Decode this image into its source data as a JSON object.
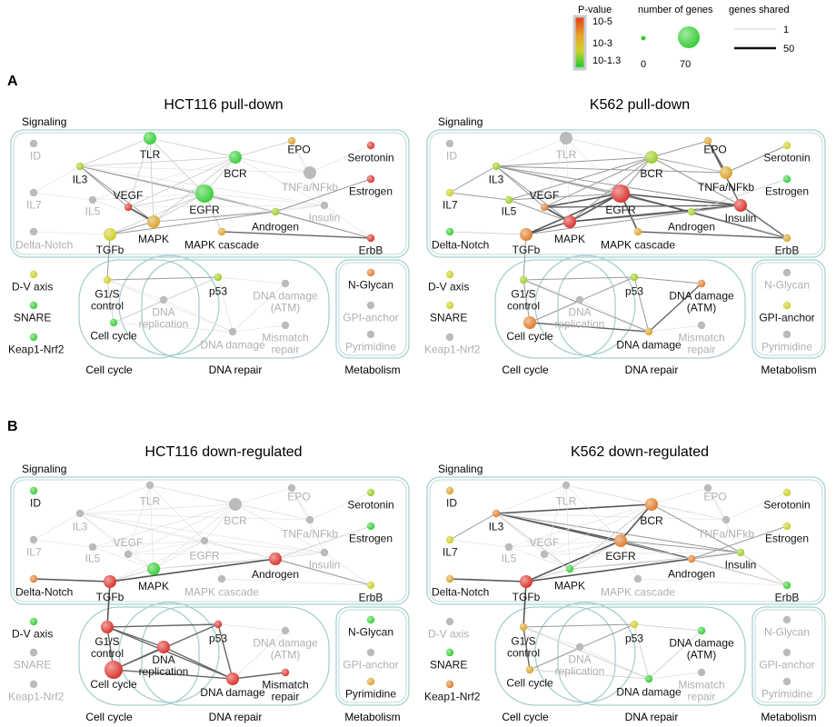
{
  "legend": {
    "pvalue_title": "P-value",
    "pvalue_ticks": [
      "10-5",
      "10-3",
      "10-1.3"
    ],
    "size_title": "number of genes",
    "size_ticks": [
      "0",
      "70"
    ],
    "shared_title": "genes shared",
    "shared_ticks": [
      "1",
      "50"
    ]
  },
  "sections": [
    "A",
    "B"
  ],
  "group_labels": {
    "signaling": "Signaling",
    "cell_cycle": "Cell cycle",
    "dna_repair": "DNA repair",
    "metabolism": "Metabolism"
  },
  "colors": {
    "inactive": "#bbbbbb",
    "strong": "#d9302a",
    "orange": "#df7a28",
    "amber": "#d9a126",
    "yellow": "#cccc22",
    "lime": "#99cc22",
    "green": "#33cc33",
    "box": "#a8cfcf"
  },
  "pathways": {
    "ID": "ID",
    "TLR": "TLR",
    "EPO": "EPO",
    "Serotonin": "Serotonin",
    "BCR": "BCR",
    "IL3": "IL3",
    "TNFa": "TNFa/NFkb",
    "VEGF": "VEGF",
    "Estrogen": "Estrogen",
    "EGFR": "EGFR",
    "IL7": "IL7",
    "IL5": "IL5",
    "Insulin": "Insulin",
    "Androgen": "Androgen",
    "MAPK": "MAPK",
    "DeltaNotch": "Delta-Notch",
    "TGFb": "TGFb",
    "MAPKcascade": "MAPK cascade",
    "ErbB": "ErbB",
    "DVaxis": "D-V axis",
    "SNARE": "SNARE",
    "Keap1": "Keap1-Nrf2",
    "G1S": "G1/S\ncontrol",
    "CellCycle": "Cell cycle",
    "DNArep": "DNA\nreplication",
    "p53": "p53",
    "DNAdamATM": "DNA damage\n(ATM)",
    "DNAdamage": "DNA damage",
    "Mismatch": "Mismatch\nrepair",
    "NGlycan": "N-Glycan",
    "GPI": "GPI-anchor",
    "Pyrimidine": "Pyrimidine"
  },
  "panels": [
    {
      "title": "HCT116 pull-down",
      "nodes": {
        "ID": [
          "inactive",
          "s"
        ],
        "TLR": [
          "green",
          "m"
        ],
        "EPO": [
          "amber",
          "s"
        ],
        "Serotonin": [
          "strong",
          "s"
        ],
        "BCR": [
          "green",
          "m"
        ],
        "IL3": [
          "lime",
          "s"
        ],
        "TNFa": [
          "inactive",
          "m"
        ],
        "VEGF": [
          "strong",
          "s"
        ],
        "Estrogen": [
          "strong",
          "s"
        ],
        "EGFR": [
          "green",
          "l"
        ],
        "IL7": [
          "inactive",
          "s"
        ],
        "IL5": [
          "inactive",
          "s"
        ],
        "Insulin": [
          "inactive",
          "s"
        ],
        "Androgen": [
          "lime",
          "s"
        ],
        "MAPK": [
          "amber",
          "m"
        ],
        "DeltaNotch": [
          "inactive",
          "s"
        ],
        "TGFb": [
          "yellow",
          "m"
        ],
        "MAPKcascade": [
          "amber",
          "s"
        ],
        "ErbB": [
          "strong",
          "s"
        ],
        "DVaxis": [
          "yellow",
          "s"
        ],
        "SNARE": [
          "green",
          "s"
        ],
        "Keap1": [
          "green",
          "s"
        ],
        "G1S": [
          "yellow",
          "s"
        ],
        "CellCycle": [
          "green",
          "s"
        ],
        "DNArep": [
          "inactive",
          "s"
        ],
        "p53": [
          "lime",
          "s"
        ],
        "DNAdamATM": [
          "inactive",
          "s"
        ],
        "DNAdamage": [
          "inactive",
          "s"
        ],
        "Mismatch": [
          "inactive",
          "s"
        ],
        "NGlycan": [
          "orange",
          "s"
        ],
        "GPI": [
          "inactive",
          "s"
        ],
        "Pyrimidine": [
          "inactive",
          "s"
        ]
      }
    },
    {
      "title": "K562 pull-down",
      "nodes": {
        "ID": [
          "inactive",
          "s"
        ],
        "TLR": [
          "inactive",
          "m"
        ],
        "EPO": [
          "amber",
          "s"
        ],
        "Serotonin": [
          "yellow",
          "s"
        ],
        "BCR": [
          "lime",
          "m"
        ],
        "IL3": [
          "lime",
          "s"
        ],
        "TNFa": [
          "amber",
          "m"
        ],
        "VEGF": [
          "orange",
          "s"
        ],
        "Estrogen": [
          "green",
          "s"
        ],
        "EGFR": [
          "strong",
          "l"
        ],
        "IL7": [
          "yellow",
          "s"
        ],
        "IL5": [
          "lime",
          "s"
        ],
        "Insulin": [
          "strong",
          "m"
        ],
        "Androgen": [
          "lime",
          "s"
        ],
        "MAPK": [
          "strong",
          "m"
        ],
        "DeltaNotch": [
          "green",
          "s"
        ],
        "TGFb": [
          "orange",
          "m"
        ],
        "MAPKcascade": [
          "amber",
          "s"
        ],
        "ErbB": [
          "amber",
          "s"
        ],
        "DVaxis": [
          "yellow",
          "s"
        ],
        "SNARE": [
          "yellow",
          "s"
        ],
        "Keap1": [
          "inactive",
          "s"
        ],
        "G1S": [
          "lime",
          "s"
        ],
        "CellCycle": [
          "orange",
          "m"
        ],
        "DNArep": [
          "inactive",
          "s"
        ],
        "p53": [
          "lime",
          "s"
        ],
        "DNAdamATM": [
          "orange",
          "s"
        ],
        "DNAdamage": [
          "amber",
          "s"
        ],
        "Mismatch": [
          "inactive",
          "s"
        ],
        "NGlycan": [
          "inactive",
          "s"
        ],
        "GPI": [
          "yellow",
          "s"
        ],
        "Pyrimidine": [
          "inactive",
          "s"
        ]
      }
    },
    {
      "title": "HCT116 down-regulated",
      "nodes": {
        "ID": [
          "green",
          "s"
        ],
        "TLR": [
          "inactive",
          "s"
        ],
        "EPO": [
          "inactive",
          "s"
        ],
        "Serotonin": [
          "lime",
          "s"
        ],
        "BCR": [
          "inactive",
          "m"
        ],
        "IL3": [
          "inactive",
          "s"
        ],
        "TNFa": [
          "inactive",
          "s"
        ],
        "VEGF": [
          "inactive",
          "s"
        ],
        "Estrogen": [
          "green",
          "s"
        ],
        "EGFR": [
          "inactive",
          "s"
        ],
        "IL7": [
          "inactive",
          "s"
        ],
        "IL5": [
          "inactive",
          "s"
        ],
        "Insulin": [
          "inactive",
          "s"
        ],
        "Androgen": [
          "strong",
          "m"
        ],
        "MAPK": [
          "green",
          "m"
        ],
        "DeltaNotch": [
          "orange",
          "s"
        ],
        "TGFb": [
          "strong",
          "m"
        ],
        "MAPKcascade": [
          "inactive",
          "s"
        ],
        "ErbB": [
          "yellow",
          "s"
        ],
        "DVaxis": [
          "green",
          "s"
        ],
        "SNARE": [
          "inactive",
          "s"
        ],
        "Keap1": [
          "inactive",
          "s"
        ],
        "G1S": [
          "strong",
          "m"
        ],
        "CellCycle": [
          "strong",
          "l"
        ],
        "DNArep": [
          "strong",
          "m"
        ],
        "p53": [
          "strong",
          "s"
        ],
        "DNAdamATM": [
          "inactive",
          "s"
        ],
        "DNAdamage": [
          "strong",
          "m"
        ],
        "Mismatch": [
          "strong",
          "s"
        ],
        "NGlycan": [
          "green",
          "s"
        ],
        "GPI": [
          "inactive",
          "s"
        ],
        "Pyrimidine": [
          "amber",
          "s"
        ]
      }
    },
    {
      "title": "K562 down-regulated",
      "nodes": {
        "ID": [
          "amber",
          "s"
        ],
        "TLR": [
          "inactive",
          "s"
        ],
        "EPO": [
          "inactive",
          "s"
        ],
        "Serotonin": [
          "yellow",
          "s"
        ],
        "BCR": [
          "orange",
          "m"
        ],
        "IL3": [
          "orange",
          "s"
        ],
        "TNFa": [
          "inactive",
          "s"
        ],
        "VEGF": [
          "inactive",
          "s"
        ],
        "Estrogen": [
          "yellow",
          "s"
        ],
        "EGFR": [
          "orange",
          "m"
        ],
        "IL7": [
          "yellow",
          "s"
        ],
        "IL5": [
          "inactive",
          "s"
        ],
        "Insulin": [
          "lime",
          "s"
        ],
        "Androgen": [
          "orange",
          "s"
        ],
        "MAPK": [
          "green",
          "s"
        ],
        "DeltaNotch": [
          "amber",
          "s"
        ],
        "TGFb": [
          "strong",
          "m"
        ],
        "MAPKcascade": [
          "inactive",
          "s"
        ],
        "ErbB": [
          "green",
          "s"
        ],
        "DVaxis": [
          "inactive",
          "s"
        ],
        "SNARE": [
          "green",
          "s"
        ],
        "Keap1": [
          "orange",
          "s"
        ],
        "G1S": [
          "amber",
          "s"
        ],
        "CellCycle": [
          "amber",
          "s"
        ],
        "DNArep": [
          "inactive",
          "s"
        ],
        "p53": [
          "yellow",
          "s"
        ],
        "DNAdamATM": [
          "green",
          "s"
        ],
        "DNAdamage": [
          "green",
          "s"
        ],
        "Mismatch": [
          "inactive",
          "s"
        ],
        "NGlycan": [
          "inactive",
          "s"
        ],
        "GPI": [
          "inactive",
          "s"
        ],
        "Pyrimidine": [
          "inactive",
          "s"
        ]
      }
    }
  ]
}
